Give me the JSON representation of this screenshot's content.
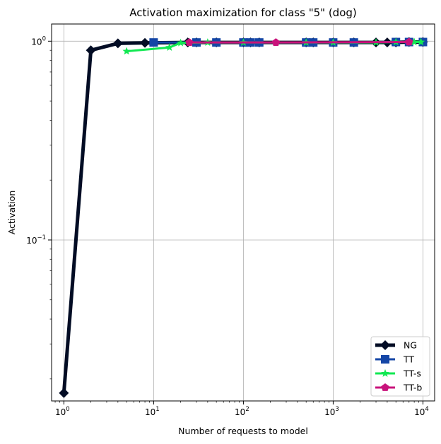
{
  "chart_data": {
    "type": "line",
    "title": "Activation maximization for class \"5\" (dog)",
    "xlabel": "Number of requests to model",
    "ylabel": "Activation",
    "xscale": "log",
    "yscale": "log",
    "xlim": [
      0.73,
      13500
    ],
    "ylim": [
      0.0155,
      1.22
    ],
    "grid": true,
    "legend_position": "lower-right",
    "x_ticks": [
      {
        "value": 1,
        "base": "10",
        "exp": "0"
      },
      {
        "value": 10,
        "base": "10",
        "exp": "1"
      },
      {
        "value": 100,
        "base": "10",
        "exp": "2"
      },
      {
        "value": 1000,
        "base": "10",
        "exp": "3"
      },
      {
        "value": 10000,
        "base": "10",
        "exp": "4"
      }
    ],
    "y_ticks": [
      {
        "value": 1,
        "base": "10",
        "exp": "0"
      },
      {
        "value": 0.1,
        "base": "10",
        "exp": "−1"
      }
    ],
    "series": [
      {
        "name": "NG",
        "color": "#020c24",
        "marker": "diamond",
        "line_width": 5,
        "x": [
          1,
          2,
          4,
          8,
          24,
          30,
          50,
          100,
          120,
          150,
          500,
          600,
          1000,
          1700,
          3000,
          4000,
          5000,
          7000,
          10000
        ],
        "y": [
          0.017,
          0.9,
          0.975,
          0.98,
          0.985,
          0.985,
          0.985,
          0.985,
          0.985,
          0.985,
          0.985,
          0.985,
          0.985,
          0.985,
          0.985,
          0.985,
          0.985,
          0.99,
          0.99
        ]
      },
      {
        "name": "TT",
        "color": "#1446a6",
        "marker": "square",
        "line_width": 3,
        "x": [
          10,
          30,
          50,
          100,
          120,
          150,
          500,
          600,
          1000,
          1700,
          5000,
          7000,
          10000
        ],
        "y": [
          0.985,
          0.985,
          0.985,
          0.985,
          0.985,
          0.985,
          0.985,
          0.985,
          0.985,
          0.985,
          0.99,
          0.99,
          0.99
        ]
      },
      {
        "name": "TT-s",
        "color": "#12e852",
        "marker": "star",
        "line_width": 3,
        "x": [
          5,
          15,
          20,
          40,
          100,
          500,
          1000,
          3000,
          5000,
          8000,
          9500
        ],
        "y": [
          0.89,
          0.93,
          0.98,
          0.985,
          0.985,
          0.985,
          0.985,
          0.985,
          0.99,
          0.99,
          0.99
        ]
      },
      {
        "name": "TT-b",
        "color": "#c8137b",
        "marker": "pentagon",
        "line_width": 3,
        "x": [
          25,
          230,
          7000
        ],
        "y": [
          0.985,
          0.985,
          0.99
        ]
      }
    ]
  }
}
